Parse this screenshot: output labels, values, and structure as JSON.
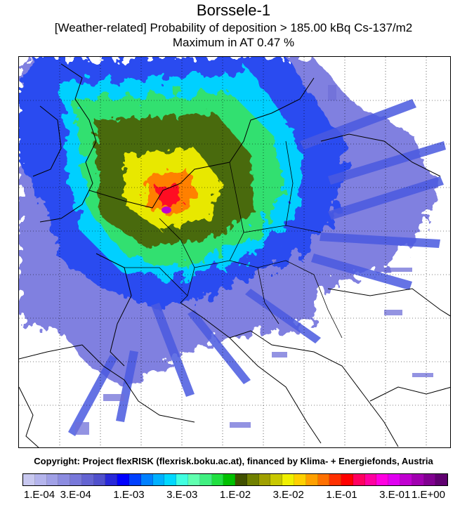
{
  "header": {
    "title": "Borssele-1",
    "subtitle": "[Weather-related] Probability of deposition > 185.00 kBq Cs-137/m2",
    "maximum": "Maximum in AT   0.47 %"
  },
  "footer": {
    "copyright": "Copyright: Project flexRISK (flexrisk.boku.ac.at), financed by Klima- + Energiefonds, Austria"
  },
  "legend": {
    "ticks": [
      "1.E-04",
      "3.E-04",
      "1.E-03",
      "3.E-03",
      "1.E-02",
      "3.E-02",
      "1.E-01",
      "3.E-01",
      "1.E+00"
    ],
    "colors": [
      "#c8c8f0",
      "#b4b4ec",
      "#a0a0e6",
      "#8c8ce0",
      "#7878da",
      "#6464d2",
      "#5050cc",
      "#2828d8",
      "#0000ff",
      "#0040ff",
      "#0080ff",
      "#00b0ff",
      "#00d8ff",
      "#40ffe0",
      "#60ffb0",
      "#40f080",
      "#20e040",
      "#00c000",
      "#405000",
      "#708000",
      "#a0a000",
      "#c8c800",
      "#f0f000",
      "#ffd000",
      "#ffa000",
      "#ff7000",
      "#ff3000",
      "#ff0000",
      "#ff0060",
      "#ff00a0",
      "#ff00e0",
      "#e000f0",
      "#c000d0",
      "#a000b0",
      "#800090",
      "#600070"
    ]
  }
}
